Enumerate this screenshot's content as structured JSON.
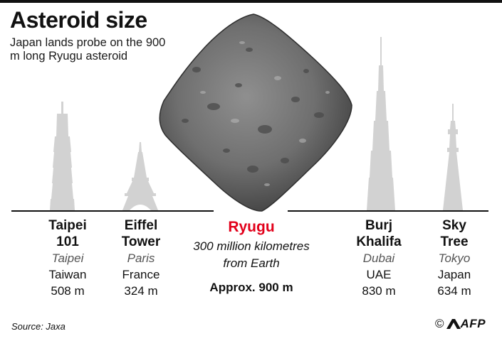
{
  "header": {
    "title": "Asteroid size",
    "subtitle": "Japan lands probe on the 900 m long Ryugu asteroid"
  },
  "structures": [
    {
      "name_lines": [
        "Taipei",
        "101"
      ],
      "city": "Taipei",
      "country": "Taiwan",
      "height": "508 m",
      "height_m": 508
    },
    {
      "name_lines": [
        "Eiffel",
        "Tower"
      ],
      "city": "Paris",
      "country": "France",
      "height": "324 m",
      "height_m": 324
    },
    {
      "name_lines": [
        "Burj",
        "Khalifa"
      ],
      "city": "Dubai",
      "country": "UAE",
      "height": "830 m",
      "height_m": 830
    },
    {
      "name_lines": [
        "Sky",
        "Tree"
      ],
      "city": "Tokyo",
      "country": "Japan",
      "height": "634 m",
      "height_m": 634
    }
  ],
  "ryugu": {
    "name": "Ryugu",
    "distance_lines": [
      "300 million kilometres",
      "from Earth"
    ],
    "size": "Approx. 900 m",
    "size_m": 900
  },
  "footer": {
    "source": "Source: Jaxa",
    "credit_symbol": "©",
    "credit_agency": "AFP"
  },
  "colors": {
    "title": "#111111",
    "ryugu_label": "#e2001a",
    "silhouette": "#d2d2d2",
    "asteroid": "#7a7a7a",
    "baseline": "#111111",
    "city_text": "#555555"
  },
  "icons": {
    "asteroid": "ryugu-asteroid-image",
    "taipei": "taipei-101-silhouette",
    "eiffel": "eiffel-tower-silhouette",
    "burj": "burj-khalifa-silhouette",
    "skytree": "tokyo-skytree-silhouette",
    "agency": "afp-logo"
  }
}
